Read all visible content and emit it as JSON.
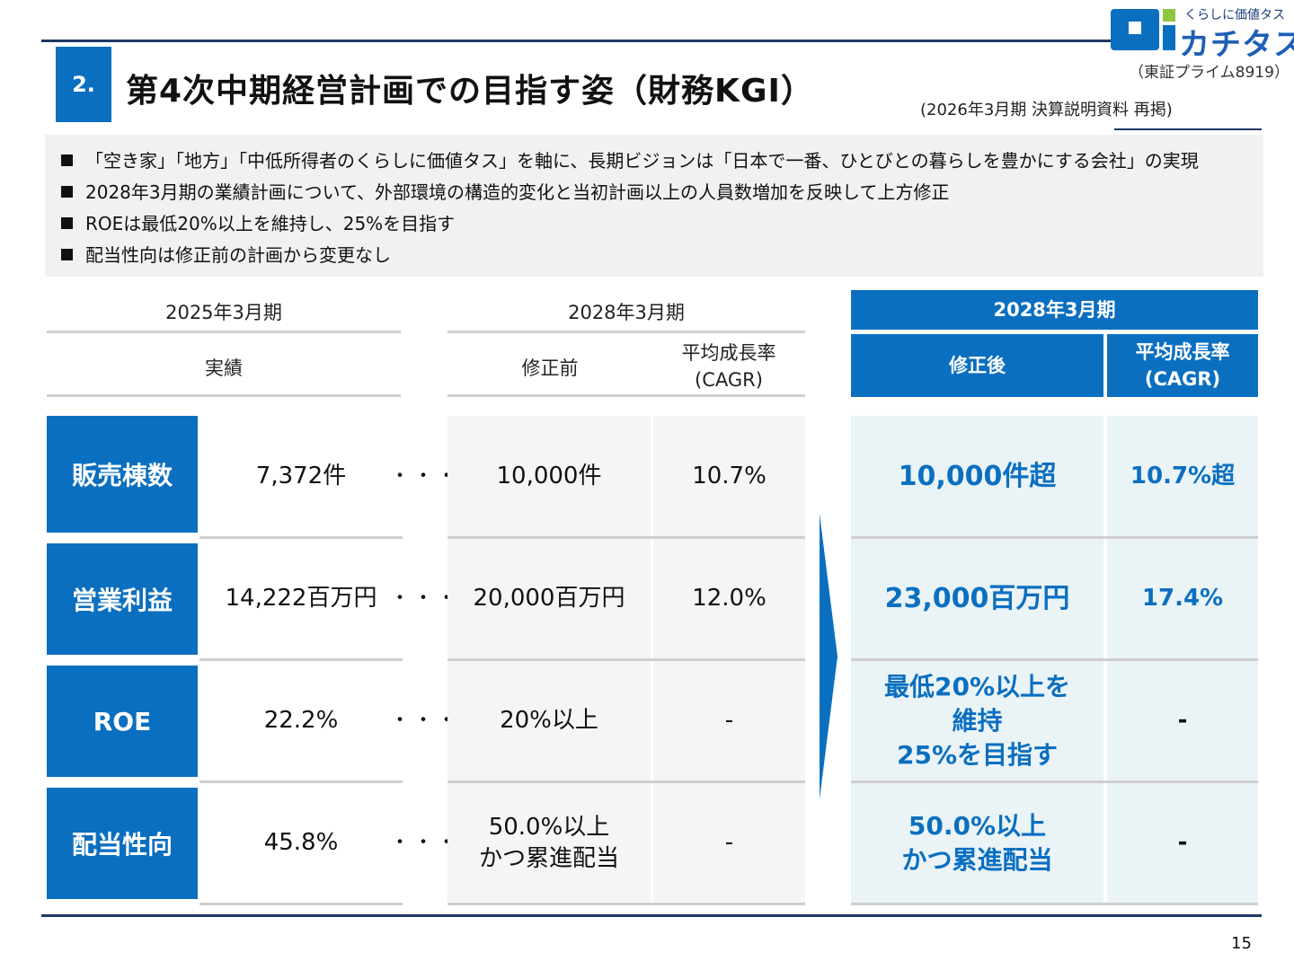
{
  "header": {
    "section_number": "2.",
    "title": "第4次中期経営計画での目指す姿（財務KGI）",
    "subnote": "(2026年3月期 決算説明資料 再掲)"
  },
  "logo": {
    "tagline": "くらしに価値タス",
    "name": "カチタス",
    "exchange": "（東証プライム8919）",
    "brand_color": "#0b6fc0"
  },
  "summary": [
    "「空き家」「地方」「中低所得者のくらしに価値タス」を軸に、長期ビジョンは「日本で一番、ひとびとの暮らしを豊かにする会社」の実現",
    "2028年3月期の業績計画について、外部環境の構造的変化と当初計画以上の人員数増加を反映して上方修正",
    "ROEは最低20%以上を維持し、25%を目指す",
    "配当性向は修正前の計画から変更なし"
  ],
  "columns": {
    "period_2025": "2025年3月期",
    "period_2028_before": "2028年3月期",
    "period_2028_after": "2028年3月期",
    "actual": "実績",
    "before": "修正前",
    "cagr_before_1": "平均成長率",
    "cagr_before_2": "(CAGR)",
    "after": "修正後",
    "cagr_after_1": "平均成長率",
    "cagr_after_2": "(CAGR)"
  },
  "rows": [
    {
      "label": "販売棟数",
      "actual": "7,372件",
      "before": "10,000件",
      "before_cagr": "10.7%",
      "after": "10,000件超",
      "after_cagr": "10.7%超"
    },
    {
      "label": "営業利益",
      "actual": "14,222百万円",
      "before": "20,000百万円",
      "before_cagr": "12.0%",
      "after": "23,000百万円",
      "after_cagr": "17.4%"
    },
    {
      "label": "ROE",
      "actual": "22.2%",
      "before": "20%以上",
      "before_cagr": "-",
      "after_1": "最低20%以上を",
      "after_2": "維持",
      "after_3": "25%を目指す",
      "after_cagr": "-"
    },
    {
      "label": "配当性向",
      "actual": "45.8%",
      "before_1": "50.0%以上",
      "before_2": "かつ累進配当",
      "before_cagr": "-",
      "after_1": "50.0%以上",
      "after_2": "かつ累進配当",
      "after_cagr": "-"
    }
  ],
  "dots": "・・・",
  "page_number": "15"
}
